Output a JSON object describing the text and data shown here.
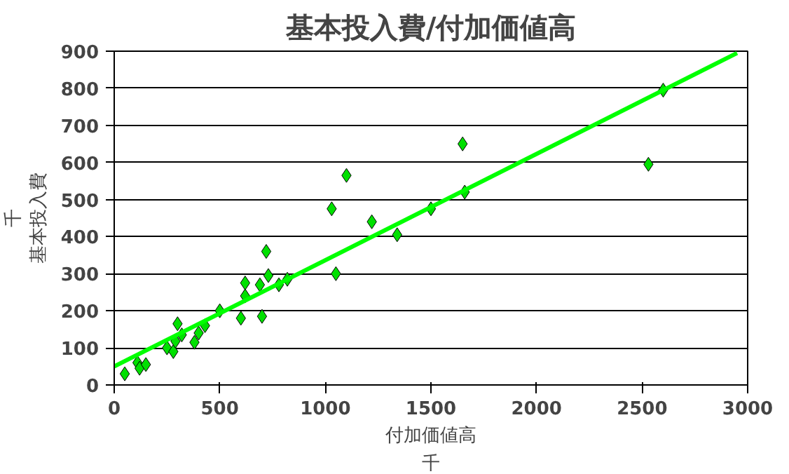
{
  "chart_data": {
    "type": "scatter",
    "title": "基本投入費/付加価値高",
    "xlabel": "付加価値高",
    "ylabel": "基本投入費",
    "annotations": [
      "千",
      "千"
    ],
    "xlim": [
      0,
      3000
    ],
    "xticks": [
      0,
      500,
      1000,
      1500,
      2000,
      2500,
      3000
    ],
    "ylim": [
      0,
      900
    ],
    "yticks": [
      0,
      100,
      200,
      300,
      400,
      500,
      600,
      700,
      800,
      900
    ],
    "grid": "y",
    "marker": "diamond",
    "series": [
      {
        "color": "#00e000",
        "x": [
          50,
          110,
          120,
          150,
          250,
          280,
          300,
          290,
          320,
          380,
          400,
          430,
          500,
          600,
          620,
          620,
          690,
          700,
          720,
          730,
          780,
          820,
          1030,
          1050,
          1100,
          1220,
          1340,
          1500,
          1650,
          1660,
          2530,
          2600
        ],
        "values": [
          30,
          60,
          45,
          55,
          100,
          90,
          165,
          118,
          135,
          115,
          140,
          160,
          200,
          180,
          240,
          275,
          270,
          185,
          360,
          295,
          270,
          285,
          475,
          300,
          565,
          440,
          405,
          475,
          650,
          520,
          595,
          795
        ]
      },
      {
        "type": "line",
        "marker": "none",
        "color": "#00ff00",
        "x": [
          0,
          2950
        ],
        "values": [
          50,
          895
        ]
      }
    ]
  }
}
